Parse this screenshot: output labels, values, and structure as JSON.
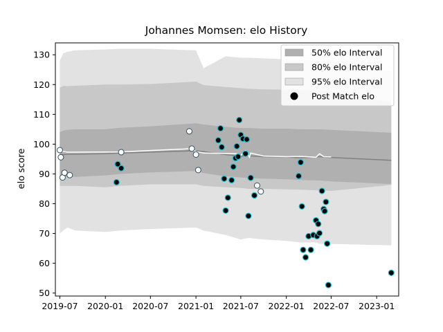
{
  "chart_data": {
    "type": "scatter",
    "title": "Johannes Momsen: elo History",
    "xlabel": "",
    "ylabel": "elo score",
    "xlim": [
      "2019-06-13",
      "2023-03-31"
    ],
    "ylim": [
      49,
      134
    ],
    "xticks": [
      "2019-07",
      "2020-01",
      "2020-07",
      "2021-01",
      "2021-07",
      "2022-01",
      "2022-07",
      "2023-01"
    ],
    "yticks": [
      50,
      60,
      70,
      80,
      90,
      100,
      110,
      120,
      130
    ],
    "grid": false,
    "legend": {
      "position": "top-right",
      "entries": [
        "50% elo Interval",
        "80% elo Interval",
        "95% elo Interval",
        "Post Match elo"
      ]
    },
    "colors": {
      "band50": "#b0b0b0",
      "band80": "#c8c8c8",
      "band95": "#e2e2e2",
      "mean_line": "#808080",
      "actual_line": "#ffffff",
      "point_fill": "#000000",
      "point_edge": "#17becf",
      "point_light_fill": "#ffffff",
      "point_light_edge": "#2f4f5f"
    },
    "bands": {
      "x": [
        "2019-07-01",
        "2019-07-15",
        "2019-08-01",
        "2019-09-01",
        "2020-01-01",
        "2020-03-01",
        "2020-07-01",
        "2021-01-01",
        "2021-02-01",
        "2021-05-01",
        "2021-07-01",
        "2021-08-01",
        "2021-10-01",
        "2022-01-01",
        "2022-03-01",
        "2022-05-01",
        "2022-05-15",
        "2022-07-01",
        "2023-03-01"
      ],
      "mean": [
        96.5,
        96.5,
        96.6,
        96.6,
        96.8,
        97.0,
        97.3,
        97.8,
        97.5,
        96.5,
        96.0,
        96.1,
        95.8,
        95.7,
        95.4,
        95.7,
        95.8,
        95.5,
        94.6
      ],
      "p50": [
        [
          89,
          104
        ],
        [
          89,
          104.5
        ],
        [
          89,
          104.8
        ],
        [
          89,
          105
        ],
        [
          89.5,
          105
        ],
        [
          90,
          105.5
        ],
        [
          90.5,
          106
        ],
        [
          91,
          107
        ],
        [
          90.3,
          106.6
        ],
        [
          89.2,
          105.8
        ],
        [
          88.8,
          105.4
        ],
        [
          88.6,
          105.4
        ],
        [
          88.4,
          105.2
        ],
        [
          88.2,
          105.2
        ],
        [
          88,
          105
        ],
        [
          87.8,
          105
        ],
        [
          87.8,
          105
        ],
        [
          87.5,
          104.8
        ],
        [
          86.6,
          103.8
        ]
      ],
      "p80": [
        [
          86,
          119
        ],
        [
          86,
          119.5
        ],
        [
          86,
          119.5
        ],
        [
          86,
          119.6
        ],
        [
          85.5,
          120
        ],
        [
          86,
          120
        ],
        [
          86.5,
          120.2
        ],
        [
          86.5,
          121
        ],
        [
          86,
          119.8
        ],
        [
          85.5,
          119.2
        ],
        [
          85.3,
          118.8
        ],
        [
          85,
          118.6
        ],
        [
          85,
          118.4
        ],
        [
          84.8,
          118.3
        ],
        [
          84.7,
          118.2
        ],
        [
          84.5,
          118.1
        ],
        [
          84.5,
          118
        ],
        [
          84.3,
          117.8
        ],
        [
          86.3,
          114
        ]
      ],
      "p95": [
        [
          70,
          128
        ],
        [
          71,
          130.5
        ],
        [
          72,
          131
        ],
        [
          71,
          131.5
        ],
        [
          70.5,
          131.8
        ],
        [
          71,
          132
        ],
        [
          71.5,
          132
        ],
        [
          72,
          131.5
        ],
        [
          71,
          125.5
        ],
        [
          69.5,
          129.5
        ],
        [
          68,
          129
        ],
        [
          68.5,
          129
        ],
        [
          68,
          128.8
        ],
        [
          67.5,
          128.5
        ],
        [
          67,
          128.3
        ],
        [
          67,
          128
        ],
        [
          66.5,
          127.8
        ],
        [
          66.5,
          127.5
        ],
        [
          66,
          124.5
        ]
      ]
    },
    "actual_line": {
      "x": [
        "2019-07-01",
        "2019-08-01",
        "2020-03-01",
        "2020-12-15",
        "2021-01-01",
        "2021-02-01",
        "2021-06-15",
        "2021-07-01",
        "2021-07-20",
        "2021-08-05",
        "2021-08-10",
        "2021-10-01",
        "2022-01-01",
        "2022-03-01",
        "2022-05-01",
        "2022-05-15",
        "2022-06-01",
        "2022-07-01"
      ],
      "y": [
        97.8,
        97.3,
        97.4,
        98.5,
        97.5,
        97.0,
        96.8,
        96.2,
        97.8,
        95.6,
        97.0,
        96.0,
        95.8,
        95.9,
        95.6,
        96.8,
        95.8,
        95.7
      ]
    },
    "points_light": {
      "x": [
        "2019-07-01",
        "2019-07-05",
        "2019-07-12",
        "2019-07-20",
        "2019-08-10",
        "2020-03-05",
        "2020-12-05",
        "2020-12-15",
        "2021-01-01",
        "2021-01-10",
        "2021-09-05",
        "2021-09-20"
      ],
      "y": [
        98.0,
        95.6,
        88.8,
        90.4,
        89.6,
        97.3,
        104.3,
        98.5,
        96.5,
        91.3,
        86.1,
        84.1
      ]
    },
    "points_dark": {
      "x": [
        "2020-02-15",
        "2020-02-20",
        "2020-03-05",
        "2021-04-01",
        "2021-04-10",
        "2021-04-15",
        "2021-04-25",
        "2021-05-01",
        "2021-05-10",
        "2021-05-25",
        "2021-06-01",
        "2021-06-10",
        "2021-06-15",
        "2021-06-20",
        "2021-06-25",
        "2021-07-01",
        "2021-07-10",
        "2021-07-20",
        "2021-07-25",
        "2021-08-01",
        "2021-08-10",
        "2021-08-25",
        "2022-02-20",
        "2022-02-28",
        "2022-03-05",
        "2022-03-10",
        "2022-03-20",
        "2022-04-01",
        "2022-04-10",
        "2022-04-20",
        "2022-05-01",
        "2022-05-05",
        "2022-05-10",
        "2022-05-15",
        "2022-05-25",
        "2022-06-01",
        "2022-06-05",
        "2022-06-10",
        "2022-06-15",
        "2022-06-20",
        "2023-03-01"
      ],
      "y": [
        87.2,
        93.3,
        91.9,
        101.3,
        105.3,
        99.0,
        88.4,
        77.7,
        82.0,
        87.9,
        92.4,
        95.3,
        99.3,
        95.8,
        108.1,
        103.1,
        101.8,
        96.8,
        101.6,
        75.9,
        88.7,
        82.8,
        89.3,
        93.9,
        79.1,
        64.5,
        62.0,
        69.1,
        64.5,
        69.5,
        74.4,
        69.1,
        73.2,
        70.1,
        84.3,
        78.2,
        77.5,
        80.6,
        66.6,
        52.7,
        56.8
      ]
    }
  }
}
